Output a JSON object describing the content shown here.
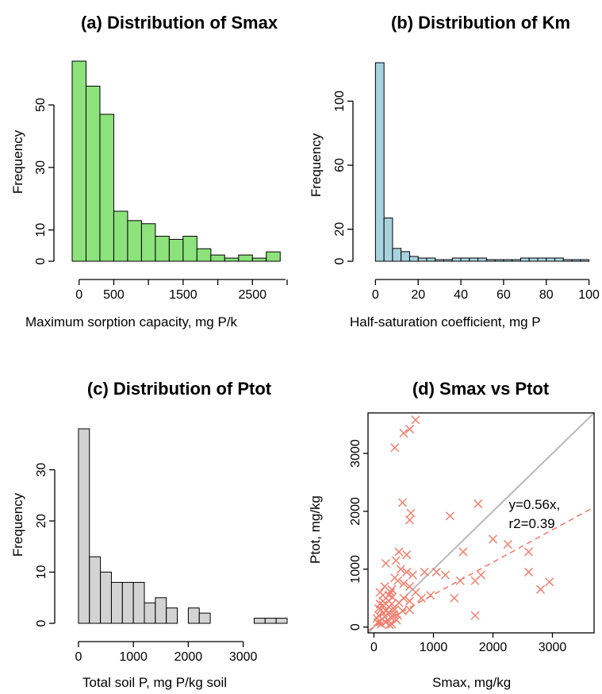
{
  "chart_data": [
    {
      "type": "bar",
      "panel": "a",
      "title": "(a) Distribution of Smax",
      "xlabel": "Maximum sorption capacity, mg P/k",
      "ylabel": "Frequency",
      "color": "#8de27c",
      "xlim": [
        -100,
        3000
      ],
      "ylim": [
        0,
        64
      ],
      "x_ticks": [
        0,
        500,
        1000,
        1500,
        2000,
        2500,
        3000
      ],
      "x_tick_labels": [
        "0",
        "500",
        "",
        "1500",
        "",
        "2500",
        ""
      ],
      "y_ticks": [
        0,
        10,
        30,
        50
      ],
      "y_tick_labels": [
        "0",
        "10",
        "30",
        "50"
      ],
      "bin_start": -100,
      "bin_width": 200,
      "values": [
        64,
        56,
        47,
        16,
        13,
        12,
        8,
        7,
        8,
        4,
        2,
        1,
        2,
        1,
        3
      ]
    },
    {
      "type": "bar",
      "panel": "b",
      "title": "(b) Distribution of Km",
      "xlabel": "Half-saturation coefficient, mg P",
      "ylabel": "Frequency",
      "color": "#a8d3de",
      "xlim": [
        -2,
        102
      ],
      "ylim": [
        0,
        125
      ],
      "x_ticks": [
        0,
        20,
        40,
        60,
        80,
        100
      ],
      "x_tick_labels": [
        "0",
        "20",
        "40",
        "60",
        "80",
        "100"
      ],
      "y_ticks": [
        0,
        20,
        60,
        100
      ],
      "y_tick_labels": [
        "0",
        "20",
        "60",
        "100"
      ],
      "bin_start": 0,
      "bin_width": 4,
      "values": [
        124,
        27,
        8,
        6,
        3,
        2,
        2,
        1,
        1,
        2,
        2,
        2,
        2,
        1,
        1,
        1,
        1,
        2,
        2,
        2,
        2,
        2,
        1,
        1,
        1
      ]
    },
    {
      "type": "bar",
      "panel": "c",
      "title": "(c) Distribution of Ptot",
      "xlabel": "Total soil P, mg P/kg soil",
      "ylabel": "Frequency",
      "color": "#d3d3d3",
      "xlim": [
        -100,
        3800
      ],
      "ylim": [
        0,
        38
      ],
      "x_ticks": [
        0,
        1000,
        2000,
        3000
      ],
      "x_tick_labels": [
        "0",
        "1000",
        "2000",
        "3000"
      ],
      "y_ticks": [
        0,
        10,
        20,
        30
      ],
      "y_tick_labels": [
        "0",
        "10",
        "20",
        "30"
      ],
      "bin_start": 0,
      "bin_width": 200,
      "values": [
        38,
        13,
        10,
        8,
        8,
        8,
        4,
        5,
        3,
        0,
        3,
        2,
        0,
        0,
        0,
        0,
        1,
        1,
        1
      ]
    },
    {
      "type": "scatter",
      "panel": "d",
      "title": "(d) Smax vs Ptot",
      "xlabel": "Smax, mg/kg",
      "ylabel": "Ptot, mg/kg",
      "marker_color": "#f08070",
      "xlim": [
        -100,
        3700
      ],
      "ylim": [
        -100,
        3700
      ],
      "x_ticks": [
        0,
        1000,
        2000,
        3000
      ],
      "x_tick_labels": [
        "0",
        "1000",
        "2000",
        "3000"
      ],
      "y_ticks": [
        0,
        1000,
        2000,
        3000
      ],
      "y_tick_labels": [
        "0",
        "1000",
        "2000",
        "3000"
      ],
      "one_to_one_line": {
        "color": "#bdbdbd"
      },
      "fit_line": {
        "slope": 0.56,
        "color": "#f08070"
      },
      "annotation": {
        "line1": "y=0.56x,",
        "line2": "r2=0.39",
        "x": 2000,
        "y": 1600
      },
      "points": [
        [
          700,
          3580
        ],
        [
          600,
          3420
        ],
        [
          500,
          3350
        ],
        [
          350,
          3100
        ],
        [
          480,
          2150
        ],
        [
          620,
          1970
        ],
        [
          600,
          1850
        ],
        [
          1750,
          2130
        ],
        [
          1280,
          1920
        ],
        [
          2000,
          1520
        ],
        [
          2250,
          1430
        ],
        [
          1500,
          1300
        ],
        [
          2600,
          1300
        ],
        [
          2600,
          950
        ],
        [
          2800,
          650
        ],
        [
          2950,
          780
        ],
        [
          1700,
          200
        ],
        [
          420,
          1300
        ],
        [
          550,
          1250
        ],
        [
          370,
          1150
        ],
        [
          200,
          1100
        ],
        [
          450,
          1000
        ],
        [
          550,
          950
        ],
        [
          650,
          900
        ],
        [
          850,
          950
        ],
        [
          1050,
          950
        ],
        [
          1200,
          900
        ],
        [
          950,
          550
        ],
        [
          1350,
          500
        ],
        [
          1450,
          800
        ],
        [
          1700,
          800
        ],
        [
          1800,
          900
        ],
        [
          350,
          850
        ],
        [
          400,
          800
        ],
        [
          500,
          750
        ],
        [
          600,
          700
        ],
        [
          300,
          650
        ],
        [
          700,
          600
        ],
        [
          800,
          500
        ],
        [
          250,
          550
        ],
        [
          500,
          500
        ],
        [
          600,
          450
        ],
        [
          100,
          600
        ],
        [
          150,
          550
        ],
        [
          200,
          500
        ],
        [
          250,
          450
        ],
        [
          300,
          400
        ],
        [
          150,
          380
        ],
        [
          120,
          300
        ],
        [
          200,
          280
        ],
        [
          250,
          250
        ],
        [
          80,
          200
        ],
        [
          180,
          180
        ],
        [
          300,
          150
        ],
        [
          100,
          100
        ],
        [
          200,
          80
        ],
        [
          300,
          50
        ],
        [
          350,
          300
        ],
        [
          400,
          200
        ],
        [
          150,
          450
        ],
        [
          50,
          150
        ],
        [
          120,
          50
        ],
        [
          250,
          350
        ],
        [
          280,
          600
        ],
        [
          180,
          700
        ],
        [
          100,
          400
        ],
        [
          230,
          120
        ],
        [
          330,
          220
        ],
        [
          420,
          420
        ],
        [
          480,
          280
        ],
        [
          600,
          300
        ],
        [
          80,
          320
        ],
        [
          160,
          240
        ],
        [
          260,
          40
        ],
        [
          310,
          520
        ],
        [
          380,
          120
        ],
        [
          140,
          140
        ],
        [
          60,
          80
        ]
      ]
    }
  ]
}
